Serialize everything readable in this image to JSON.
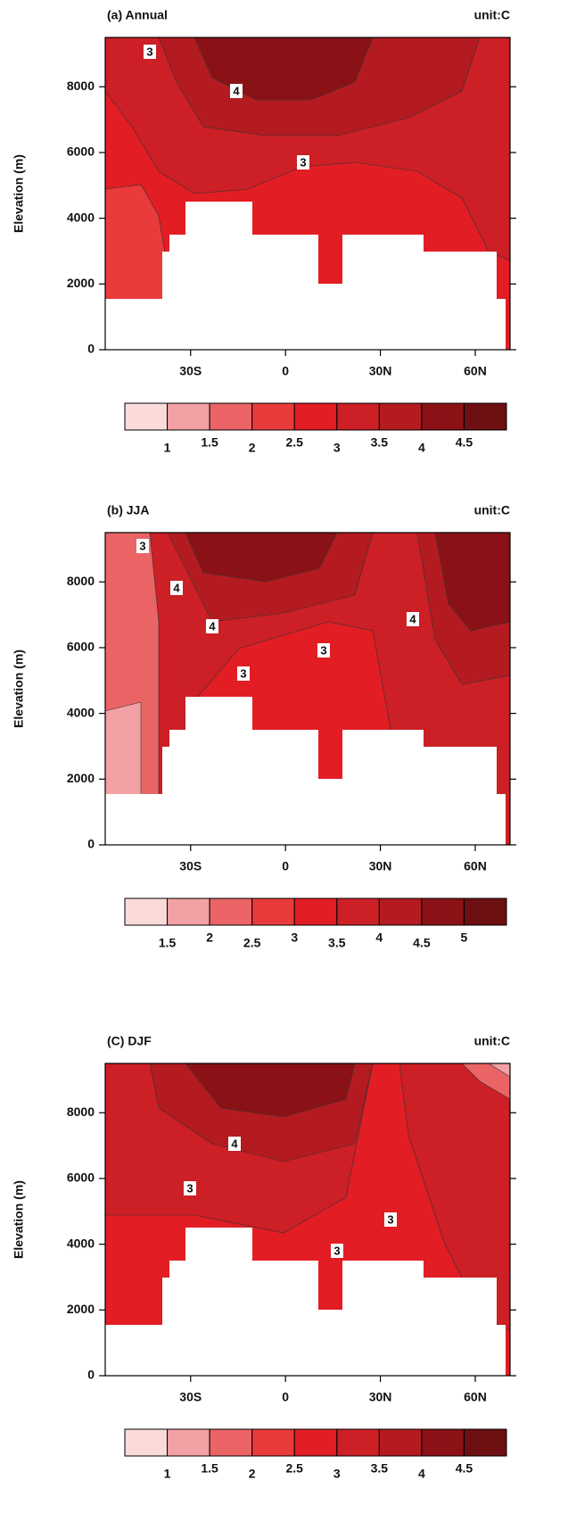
{
  "chart_data": [
    {
      "type": "contour",
      "title": "(a) Annual",
      "unit_label": "unit:C",
      "y_label": "Elevation (m)",
      "xlim": [
        -57,
        71
      ],
      "xticks": [
        {
          "value": -30,
          "label": "30S"
        },
        0,
        {
          "value": 30,
          "label": "30N"
        },
        {
          "value": 60,
          "label": "60N"
        }
      ],
      "ylim": [
        0,
        9500
      ],
      "yticks": [
        0,
        2000,
        4000,
        6000,
        8000
      ],
      "colorbar": {
        "levels": [
          1,
          1.5,
          2,
          2.5,
          3,
          3.5,
          4,
          4.5
        ],
        "colors": [
          "#fbdada",
          "#f3a1a4",
          "#ea6466",
          "#e93b3c",
          "#e21d24",
          "#cc1f26",
          "#b31b20",
          "#8a1216",
          "#6e0f12"
        ]
      },
      "contour_labels": [
        3,
        4,
        3
      ]
    },
    {
      "type": "contour",
      "title": "(b) JJA",
      "unit_label": "unit:C",
      "y_label": "Elevation (m)",
      "xlim": [
        -57,
        71
      ],
      "xticks": [
        {
          "value": -30,
          "label": "30S"
        },
        0,
        {
          "value": 30,
          "label": "30N"
        },
        {
          "value": 60,
          "label": "60N"
        }
      ],
      "ylim": [
        0,
        9500
      ],
      "yticks": [
        0,
        2000,
        4000,
        6000,
        8000
      ],
      "colorbar": {
        "levels": [
          1.5,
          2,
          2.5,
          3,
          3.5,
          4,
          4.5,
          5
        ],
        "colors": [
          "#fbdada",
          "#f3a1a4",
          "#ea6466",
          "#e93b3c",
          "#e21d24",
          "#cc1f26",
          "#b31b20",
          "#8a1216",
          "#6e0f12"
        ]
      },
      "contour_labels": [
        3,
        4,
        4,
        3,
        3,
        4
      ]
    },
    {
      "type": "contour",
      "title": "(C) DJF",
      "unit_label": "unit:C",
      "y_label": "Elevation (m)",
      "xlim": [
        -57,
        71
      ],
      "xticks": [
        {
          "value": -30,
          "label": "30S"
        },
        0,
        {
          "value": 30,
          "label": "30N"
        },
        {
          "value": 60,
          "label": "60N"
        }
      ],
      "ylim": [
        0,
        9500
      ],
      "yticks": [
        0,
        2000,
        4000,
        6000,
        8000
      ],
      "colorbar": {
        "levels": [
          1,
          1.5,
          2,
          2.5,
          3,
          3.5,
          4,
          4.5
        ],
        "colors": [
          "#fbdada",
          "#f3a1a4",
          "#ea6466",
          "#e93b3c",
          "#e21d24",
          "#cc1f26",
          "#b31b20",
          "#8a1216",
          "#6e0f12"
        ]
      },
      "contour_labels": [
        4,
        3,
        3,
        3
      ]
    }
  ]
}
